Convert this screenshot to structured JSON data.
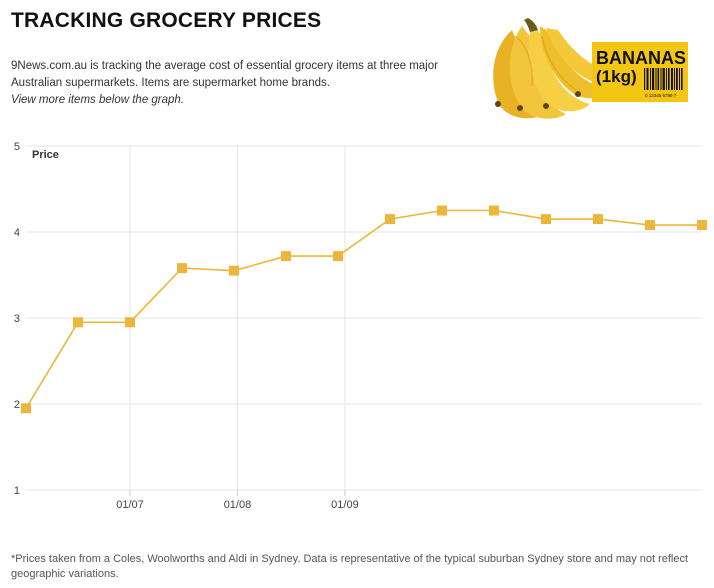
{
  "header": {
    "title": "TRACKING GROCERY PRICES",
    "description": "9News.com.au is tracking the average cost of essential grocery items at three major Australian supermarkets. Items are supermarket home brands.",
    "more_link": "View more items below the graph."
  },
  "product_label": {
    "line1": "BANANAS",
    "line2": "(1kg)",
    "barcode_text": "0 12345 6789 7"
  },
  "colors": {
    "series": "#ecb63a",
    "label_bg": "#f3c613",
    "banana_yellow": "#f1c232",
    "grid": "#e6e6e6"
  },
  "chart_data": {
    "type": "line",
    "title": "",
    "xlabel": "",
    "ylabel": "Price",
    "ylim": [
      1,
      5
    ],
    "yticks": [
      1,
      2,
      3,
      4,
      5
    ],
    "xticks": [
      "01/07",
      "01/08",
      "01/09"
    ],
    "grid": true,
    "x": [
      "2014-06-01",
      "2014-06-16",
      "2014-07-01",
      "2014-07-16",
      "2014-07-31",
      "2014-08-15",
      "2014-08-30",
      "2014-09-14",
      "2014-09-29",
      "2014-10-14",
      "2014-10-29",
      "2014-11-13",
      "2014-11-28",
      "2014-12-13"
    ],
    "series": [
      {
        "values": [
          1.95,
          2.95,
          2.95,
          3.58,
          3.55,
          3.72,
          3.72,
          4.15,
          4.25,
          4.25,
          4.15,
          4.15,
          4.08,
          4.08
        ]
      }
    ]
  },
  "footnote": "*Prices taken from a Coles, Woolworths and Aldi in Sydney. Data is representative of the typical suburban Sydney store and may not reflect geographic variations."
}
